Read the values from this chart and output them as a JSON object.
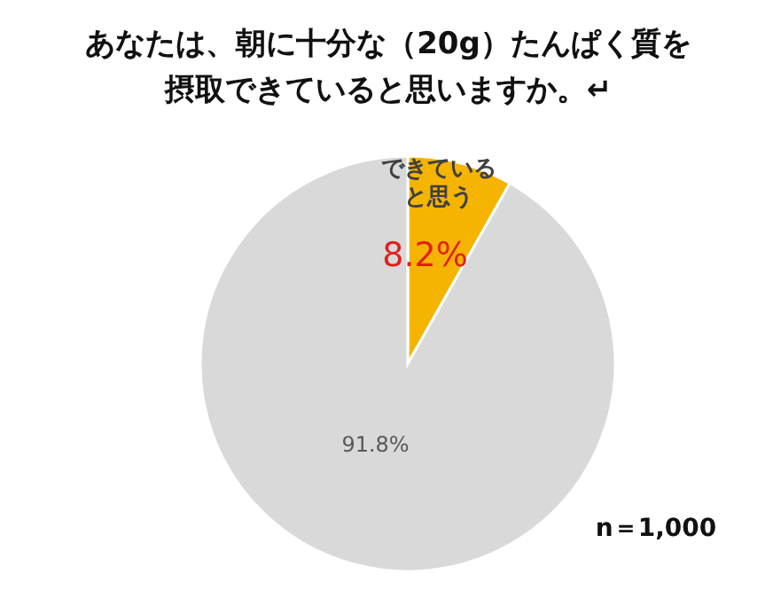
{
  "chart_data": {
    "type": "pie",
    "title": "あなたは、朝に十分な（20g）たんぱく質を摂取できていると思いますか。↵",
    "categories": [
      "できていると思う",
      null
    ],
    "values": [
      8.2,
      91.8
    ],
    "colors": [
      "#f5b400",
      "#d9d9d9"
    ],
    "value_labels": [
      "8.2%",
      "91.8%"
    ],
    "legend": false,
    "annotations": [
      "n＝1,000"
    ]
  }
}
